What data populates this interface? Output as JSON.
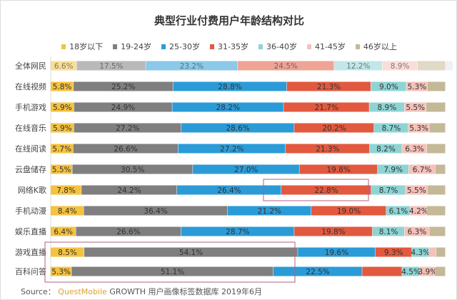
{
  "chart_data": {
    "type": "bar",
    "orientation": "horizontal",
    "stacked": true,
    "title": "典型行业付费用户年龄结构对比",
    "xlim": [
      0,
      100
    ],
    "legend_position": "top",
    "categories": [
      "全体网民",
      "在线视频",
      "手机游戏",
      "在线音乐",
      "在线阅读",
      "云盘储存",
      "网络K歌",
      "手机动漫",
      "娱乐直播",
      "游戏直播",
      "百科问答"
    ],
    "series": [
      {
        "name": "18岁以下",
        "color": "#f5c23e",
        "values": [
          6.6,
          5.8,
          5.9,
          5.9,
          5.7,
          5.5,
          7.8,
          8.4,
          6.4,
          8.5,
          5.3
        ]
      },
      {
        "name": "19-24岁",
        "color": "#7f7f7f",
        "values": [
          17.5,
          25.2,
          24.9,
          27.2,
          26.6,
          30.5,
          24.2,
          36.4,
          26.6,
          54.1,
          51.1
        ]
      },
      {
        "name": "25-30岁",
        "color": "#2b9bd7",
        "values": [
          23.2,
          28.8,
          28.2,
          28.6,
          27.2,
          27.0,
          26.4,
          21.2,
          28.7,
          19.6,
          22.5
        ]
      },
      {
        "name": "31-35岁",
        "color": "#e2593f",
        "values": [
          24.5,
          21.3,
          21.7,
          20.2,
          21.3,
          19.8,
          22.8,
          19.0,
          19.8,
          9.3,
          10.1
        ]
      },
      {
        "name": "36-40岁",
        "color": "#8ed4d5",
        "values": [
          12.2,
          9.0,
          8.9,
          8.7,
          8.2,
          7.9,
          8.7,
          6.1,
          8.1,
          4.3,
          4.5
        ]
      },
      {
        "name": "41-45岁",
        "color": "#f5c1b9",
        "values": [
          8.9,
          5.3,
          5.5,
          5.3,
          6.3,
          6.7,
          5.5,
          4.2,
          6.3,
          1.8,
          3.9
        ]
      },
      {
        "name": "46岁以上",
        "color": "#c4b996",
        "values": [
          7.1,
          4.6,
          4.9,
          4.1,
          4.7,
          2.6,
          4.6,
          4.7,
          4.1,
          2.4,
          2.6
        ]
      }
    ],
    "labels": [
      [
        "6.6%",
        "17.5%",
        "23.2%",
        "24.5%",
        "12.2%",
        "8.9%",
        ""
      ],
      [
        "5.8%",
        "25.2%",
        "28.8%",
        "21.3%",
        "9.0%",
        "5.3%",
        ""
      ],
      [
        "5.9%",
        "24.9%",
        "28.2%",
        "21.7%",
        "8.9%",
        "5.5%",
        ""
      ],
      [
        "5.9%",
        "27.2%",
        "28.6%",
        "20.2%",
        "8.7%",
        "5.3%",
        ""
      ],
      [
        "5.7%",
        "26.6%",
        "27.2%",
        "21.3%",
        "8.2%",
        "6.3%",
        ""
      ],
      [
        "5.5%",
        "30.5%",
        "27.0%",
        "19.8%",
        "7.9%",
        "6.7%",
        ""
      ],
      [
        "7.8%",
        "24.2%",
        "26.4%",
        "22.8%",
        "8.7%",
        "5.5%",
        ""
      ],
      [
        "8.4%",
        "36.4%",
        "21.2%",
        "19.0%",
        "6.1%",
        "4.2%",
        ""
      ],
      [
        "6.4%",
        "26.6%",
        "28.7%",
        "19.8%",
        "8.1%",
        "6.3%",
        ""
      ],
      [
        "8.5%",
        "54.1%",
        "19.6%",
        "9.3%",
        "4.3%",
        "",
        ""
      ],
      [
        "5.3%",
        "51.1%",
        "22.5%",
        "",
        "4.5%",
        "3.9%",
        ""
      ]
    ],
    "highlight_color": "#b0607f"
  },
  "source": {
    "prefix": "Source：",
    "brand": "QuestMobile",
    "text": "GROWTH 用户画像标签数据库 2019年6月"
  }
}
